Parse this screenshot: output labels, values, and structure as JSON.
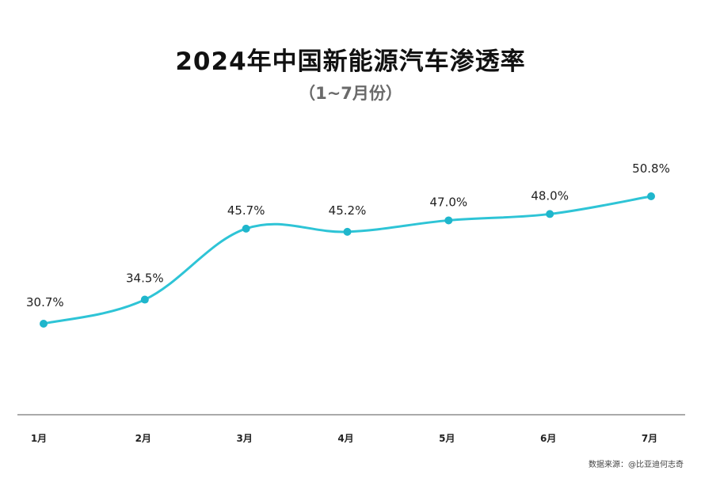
{
  "title": "2024年中国新能源汽车渗透率",
  "subtitle": "（1~7月份）",
  "source": "数据来源：@比亚迪何志奇",
  "colors": {
    "line": "#2ec4d6",
    "marker": "#1fb6cc",
    "axis": "#555555"
  },
  "chart_data": {
    "type": "line",
    "title": "2024年中国新能源汽车渗透率",
    "subtitle": "（1~7月份）",
    "categories": [
      "1月",
      "2月",
      "3月",
      "4月",
      "5月",
      "6月",
      "7月"
    ],
    "values": [
      30.7,
      34.5,
      45.7,
      45.2,
      47.0,
      48.0,
      50.8
    ],
    "data_labels": [
      "30.7%",
      "34.5%",
      "45.7%",
      "45.2%",
      "47.0%",
      "48.0%",
      "50.8%"
    ],
    "unit": "%",
    "smooth": true,
    "grid": false,
    "legend": "none"
  }
}
